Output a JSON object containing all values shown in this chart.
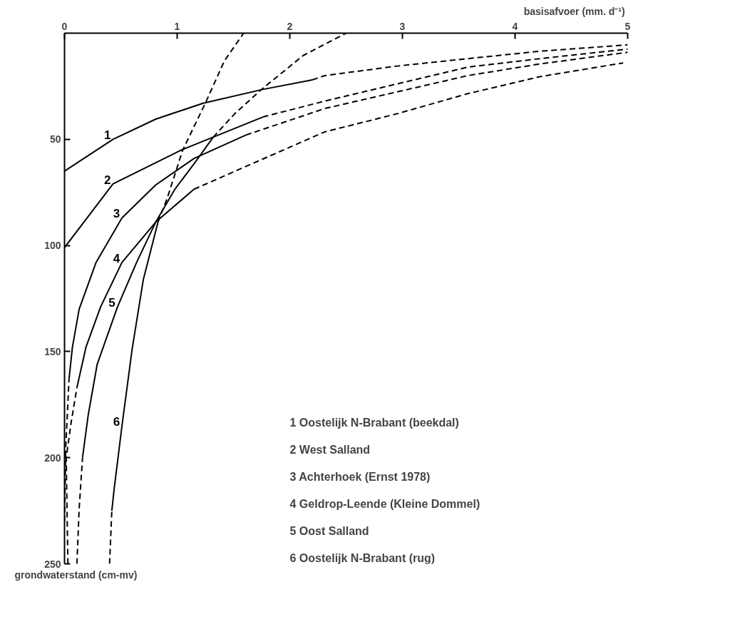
{
  "chart_data": {
    "type": "line",
    "xlabel": "basisafvoer  (mm. d⁻¹)",
    "ylabel": "grondwaterstand (cm-mv)",
    "xlim": [
      0,
      5
    ],
    "xticks": [
      0,
      1,
      2,
      3,
      4,
      5
    ],
    "ylim": [
      250,
      0
    ],
    "yticks": [
      50,
      100,
      150,
      200,
      250
    ],
    "grid": false,
    "legend": false,
    "marker": "none",
    "series": [
      {
        "name": "1",
        "color": "#000000",
        "line_style": "solid",
        "x": [
          0,
          0.43,
          0.81,
          1.23,
          1.76,
          2.2
        ],
        "values": [
          65,
          50,
          40.5,
          33,
          26.5,
          22
        ]
      },
      {
        "color": "#000000",
        "line_style": "dashed",
        "x": [
          2.2,
          2.31,
          2.95,
          3.58,
          4.22,
          5.0
        ],
        "values": [
          22,
          20,
          15.5,
          12,
          8.5,
          5.5
        ]
      },
      {
        "name": "2",
        "color": "#000000",
        "line_style": "solid",
        "x": [
          0,
          0.43,
          1.04,
          1.76
        ],
        "values": [
          101,
          71,
          55,
          39.5
        ]
      },
      {
        "color": "#000000",
        "line_style": "dashed",
        "x": [
          1.76,
          2.31,
          3.58,
          4.22,
          5.0
        ],
        "values": [
          39.5,
          32,
          16,
          12,
          7.5
        ]
      },
      {
        "name": "3",
        "color": "#000000",
        "line_style": "solid",
        "x": [
          0.04,
          0.07,
          0.13,
          0.28,
          0.51,
          0.81,
          1.15,
          1.61
        ],
        "values": [
          163,
          148,
          130,
          108,
          87,
          71.5,
          59,
          48
        ]
      },
      {
        "color": "#000000",
        "line_style": "dashed",
        "x": [
          0,
          0.01,
          0.04
        ],
        "values": [
          230,
          196,
          163
        ]
      },
      {
        "color": "#000000",
        "line_style": "dashed",
        "x": [
          1.61,
          2.31,
          3.58,
          4.22,
          5.0
        ],
        "values": [
          48,
          35.5,
          20,
          14.5,
          9
        ]
      },
      {
        "name": "4",
        "color": "#000000",
        "line_style": "solid",
        "x": [
          0.11,
          0.19,
          0.32,
          0.51,
          0.81,
          1.15
        ],
        "values": [
          167,
          148,
          129,
          108,
          89,
          73.5
        ]
      },
      {
        "color": "#000000",
        "line_style": "dashed",
        "x": [
          0.03,
          0.015,
          0.06,
          0.11
        ],
        "values": [
          250,
          200,
          183,
          167
        ]
      },
      {
        "color": "#000000",
        "line_style": "dashed",
        "x": [
          1.15,
          2.31,
          2.95,
          3.58,
          4.22,
          4.96
        ],
        "values": [
          73.5,
          46.5,
          38,
          28.5,
          20.5,
          14
        ]
      },
      {
        "color": "#000000",
        "line_style": "dashed",
        "x": [
          0.11,
          0.13,
          0.16
        ],
        "values": [
          250,
          224,
          200
        ]
      },
      {
        "name": "5",
        "color": "#000000",
        "line_style": "solid",
        "x": [
          0.16,
          0.21,
          0.29,
          0.47,
          0.64,
          0.81,
          0.98,
          1.15,
          1.32
        ],
        "values": [
          200,
          180,
          156,
          129,
          108,
          89,
          73.5,
          61.5,
          49
        ]
      },
      {
        "color": "#000000",
        "line_style": "dashed",
        "x": [
          1.32,
          1.51,
          1.76,
          2.12,
          2.5
        ],
        "values": [
          49,
          38,
          26,
          10.5,
          0
        ]
      },
      {
        "color": "#000000",
        "line_style": "dashed",
        "x": [
          0.4,
          0.42
        ],
        "values": [
          250,
          225
        ]
      },
      {
        "name": "6",
        "color": "#000000",
        "line_style": "solid",
        "x": [
          0.42,
          0.44,
          0.51,
          0.6,
          0.7,
          0.83
        ],
        "values": [
          225,
          215,
          185,
          149,
          116,
          89
        ]
      },
      {
        "color": "#000000",
        "line_style": "dashed",
        "x": [
          0.83,
          0.91,
          1.05,
          1.25,
          1.42,
          1.59
        ],
        "values": [
          89,
          78,
          55,
          33,
          13,
          0
        ]
      }
    ],
    "annotations": [
      "1  Oostelijk N-Brabant (beekdal)",
      "2  West Salland",
      "3  Achterhoek (Ernst 1978)",
      "4  Geldrop-Leende (Kleine Dommel)",
      "5  Oost Salland",
      "6  Oostelijk N-Brabant (rug)"
    ]
  }
}
